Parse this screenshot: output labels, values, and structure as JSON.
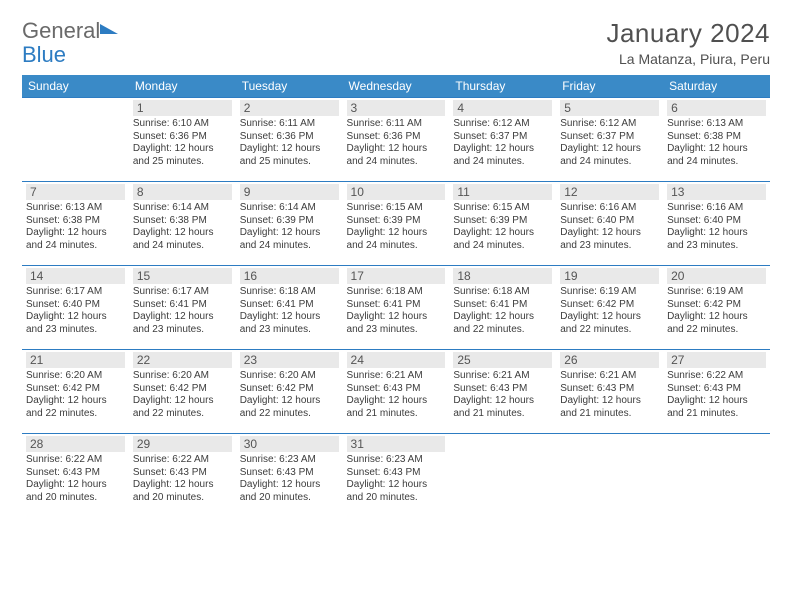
{
  "brand": {
    "part1": "General",
    "part2": "Blue"
  },
  "title": "January 2024",
  "location": "La Matanza, Piura, Peru",
  "colors": {
    "headerBg": "#3a8ac7",
    "headerFg": "#ffffff",
    "dayBg": "#e9e9e9",
    "rule": "#2d7cc2"
  },
  "dayNames": [
    "Sunday",
    "Monday",
    "Tuesday",
    "Wednesday",
    "Thursday",
    "Friday",
    "Saturday"
  ],
  "weeks": [
    [
      null,
      {
        "n": "1",
        "sr": "6:10 AM",
        "ss": "6:36 PM",
        "dl": "12 hours and 25 minutes."
      },
      {
        "n": "2",
        "sr": "6:11 AM",
        "ss": "6:36 PM",
        "dl": "12 hours and 25 minutes."
      },
      {
        "n": "3",
        "sr": "6:11 AM",
        "ss": "6:36 PM",
        "dl": "12 hours and 24 minutes."
      },
      {
        "n": "4",
        "sr": "6:12 AM",
        "ss": "6:37 PM",
        "dl": "12 hours and 24 minutes."
      },
      {
        "n": "5",
        "sr": "6:12 AM",
        "ss": "6:37 PM",
        "dl": "12 hours and 24 minutes."
      },
      {
        "n": "6",
        "sr": "6:13 AM",
        "ss": "6:38 PM",
        "dl": "12 hours and 24 minutes."
      }
    ],
    [
      {
        "n": "7",
        "sr": "6:13 AM",
        "ss": "6:38 PM",
        "dl": "12 hours and 24 minutes."
      },
      {
        "n": "8",
        "sr": "6:14 AM",
        "ss": "6:38 PM",
        "dl": "12 hours and 24 minutes."
      },
      {
        "n": "9",
        "sr": "6:14 AM",
        "ss": "6:39 PM",
        "dl": "12 hours and 24 minutes."
      },
      {
        "n": "10",
        "sr": "6:15 AM",
        "ss": "6:39 PM",
        "dl": "12 hours and 24 minutes."
      },
      {
        "n": "11",
        "sr": "6:15 AM",
        "ss": "6:39 PM",
        "dl": "12 hours and 24 minutes."
      },
      {
        "n": "12",
        "sr": "6:16 AM",
        "ss": "6:40 PM",
        "dl": "12 hours and 23 minutes."
      },
      {
        "n": "13",
        "sr": "6:16 AM",
        "ss": "6:40 PM",
        "dl": "12 hours and 23 minutes."
      }
    ],
    [
      {
        "n": "14",
        "sr": "6:17 AM",
        "ss": "6:40 PM",
        "dl": "12 hours and 23 minutes."
      },
      {
        "n": "15",
        "sr": "6:17 AM",
        "ss": "6:41 PM",
        "dl": "12 hours and 23 minutes."
      },
      {
        "n": "16",
        "sr": "6:18 AM",
        "ss": "6:41 PM",
        "dl": "12 hours and 23 minutes."
      },
      {
        "n": "17",
        "sr": "6:18 AM",
        "ss": "6:41 PM",
        "dl": "12 hours and 23 minutes."
      },
      {
        "n": "18",
        "sr": "6:18 AM",
        "ss": "6:41 PM",
        "dl": "12 hours and 22 minutes."
      },
      {
        "n": "19",
        "sr": "6:19 AM",
        "ss": "6:42 PM",
        "dl": "12 hours and 22 minutes."
      },
      {
        "n": "20",
        "sr": "6:19 AM",
        "ss": "6:42 PM",
        "dl": "12 hours and 22 minutes."
      }
    ],
    [
      {
        "n": "21",
        "sr": "6:20 AM",
        "ss": "6:42 PM",
        "dl": "12 hours and 22 minutes."
      },
      {
        "n": "22",
        "sr": "6:20 AM",
        "ss": "6:42 PM",
        "dl": "12 hours and 22 minutes."
      },
      {
        "n": "23",
        "sr": "6:20 AM",
        "ss": "6:42 PM",
        "dl": "12 hours and 22 minutes."
      },
      {
        "n": "24",
        "sr": "6:21 AM",
        "ss": "6:43 PM",
        "dl": "12 hours and 21 minutes."
      },
      {
        "n": "25",
        "sr": "6:21 AM",
        "ss": "6:43 PM",
        "dl": "12 hours and 21 minutes."
      },
      {
        "n": "26",
        "sr": "6:21 AM",
        "ss": "6:43 PM",
        "dl": "12 hours and 21 minutes."
      },
      {
        "n": "27",
        "sr": "6:22 AM",
        "ss": "6:43 PM",
        "dl": "12 hours and 21 minutes."
      }
    ],
    [
      {
        "n": "28",
        "sr": "6:22 AM",
        "ss": "6:43 PM",
        "dl": "12 hours and 20 minutes."
      },
      {
        "n": "29",
        "sr": "6:22 AM",
        "ss": "6:43 PM",
        "dl": "12 hours and 20 minutes."
      },
      {
        "n": "30",
        "sr": "6:23 AM",
        "ss": "6:43 PM",
        "dl": "12 hours and 20 minutes."
      },
      {
        "n": "31",
        "sr": "6:23 AM",
        "ss": "6:43 PM",
        "dl": "12 hours and 20 minutes."
      },
      null,
      null,
      null
    ]
  ],
  "labels": {
    "sunrise": "Sunrise:",
    "sunset": "Sunset:",
    "daylight": "Daylight:"
  }
}
